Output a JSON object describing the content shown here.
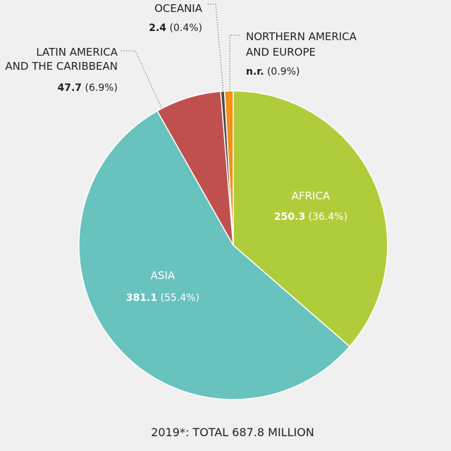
{
  "chart_data": {
    "type": "pie",
    "title": "2019*: TOTAL 687.8 MILLION",
    "slices": [
      {
        "label": "AFRICA",
        "value_text": "250.3",
        "pct_text": "(36.4%)",
        "value": 250.3,
        "percent": 36.4,
        "color": "#afcd3a"
      },
      {
        "label": "ASIA",
        "value_text": "381.1",
        "pct_text": "(55.4%)",
        "value": 381.1,
        "percent": 55.4,
        "color": "#68c2be"
      },
      {
        "label": "LATIN AMERICA AND THE CARIBBEAN",
        "label_lines": [
          "LATIN AMERICA",
          "AND THE CARIBBEAN"
        ],
        "value_text": "47.7",
        "pct_text": "(6.9%)",
        "value": 47.7,
        "percent": 6.9,
        "color": "#c0504d"
      },
      {
        "label": "OCEANIA",
        "value_text": "2.4",
        "pct_text": "(0.4%)",
        "value": 2.4,
        "percent": 0.4,
        "color": "#4a4a4a"
      },
      {
        "label": "NORTHERN AMERICA AND EUROPE",
        "label_lines": [
          "NORTHERN AMERICA",
          "AND EUROPE"
        ],
        "value_text": "n.r.",
        "pct_text": "(0.9%)",
        "value": null,
        "percent": 0.9,
        "color": "#f29018"
      }
    ]
  }
}
